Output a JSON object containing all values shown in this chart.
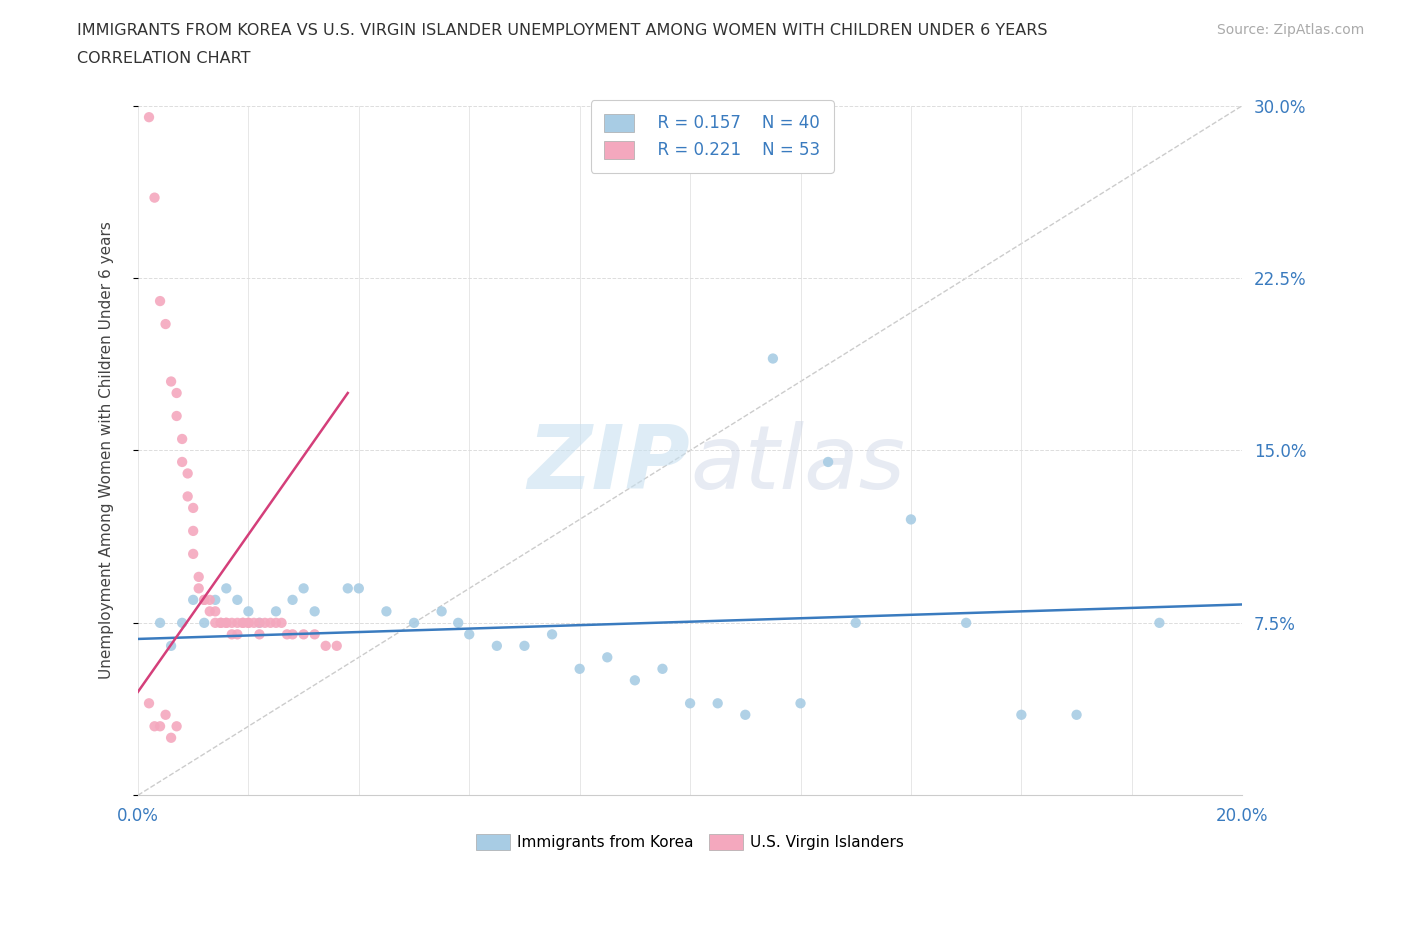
{
  "title_line1": "IMMIGRANTS FROM KOREA VS U.S. VIRGIN ISLANDER UNEMPLOYMENT AMONG WOMEN WITH CHILDREN UNDER 6 YEARS",
  "title_line2": "CORRELATION CHART",
  "source": "Source: ZipAtlas.com",
  "ylabel": "Unemployment Among Women with Children Under 6 years",
  "xlim": [
    0.0,
    0.2
  ],
  "ylim": [
    0.0,
    0.3
  ],
  "yticks": [
    0.0,
    0.075,
    0.15,
    0.225,
    0.3
  ],
  "ytick_labels": [
    "",
    "7.5%",
    "15.0%",
    "22.5%",
    "30.0%"
  ],
  "watermark_zip": "ZIP",
  "watermark_atlas": "atlas",
  "legend_r1": "R = 0.157",
  "legend_n1": "N = 40",
  "legend_r2": "R = 0.221",
  "legend_n2": "N = 53",
  "color_blue": "#a8cce4",
  "color_pink": "#f4a8be",
  "trendline_blue_color": "#3a7bbf",
  "trendline_pink_color": "#d43f7a",
  "diag_color": "#cccccc",
  "blue_scatter": [
    [
      0.004,
      0.075
    ],
    [
      0.006,
      0.065
    ],
    [
      0.008,
      0.075
    ],
    [
      0.01,
      0.085
    ],
    [
      0.012,
      0.075
    ],
    [
      0.014,
      0.085
    ],
    [
      0.016,
      0.09
    ],
    [
      0.018,
      0.085
    ],
    [
      0.02,
      0.08
    ],
    [
      0.022,
      0.075
    ],
    [
      0.025,
      0.08
    ],
    [
      0.028,
      0.085
    ],
    [
      0.03,
      0.09
    ],
    [
      0.032,
      0.08
    ],
    [
      0.038,
      0.09
    ],
    [
      0.04,
      0.09
    ],
    [
      0.045,
      0.08
    ],
    [
      0.05,
      0.075
    ],
    [
      0.055,
      0.08
    ],
    [
      0.058,
      0.075
    ],
    [
      0.06,
      0.07
    ],
    [
      0.065,
      0.065
    ],
    [
      0.07,
      0.065
    ],
    [
      0.075,
      0.07
    ],
    [
      0.08,
      0.055
    ],
    [
      0.085,
      0.06
    ],
    [
      0.09,
      0.05
    ],
    [
      0.095,
      0.055
    ],
    [
      0.1,
      0.04
    ],
    [
      0.105,
      0.04
    ],
    [
      0.11,
      0.035
    ],
    [
      0.12,
      0.04
    ],
    [
      0.115,
      0.19
    ],
    [
      0.125,
      0.145
    ],
    [
      0.13,
      0.075
    ],
    [
      0.14,
      0.12
    ],
    [
      0.15,
      0.075
    ],
    [
      0.16,
      0.035
    ],
    [
      0.17,
      0.035
    ],
    [
      0.185,
      0.075
    ]
  ],
  "pink_scatter": [
    [
      0.002,
      0.295
    ],
    [
      0.003,
      0.26
    ],
    [
      0.004,
      0.215
    ],
    [
      0.005,
      0.205
    ],
    [
      0.006,
      0.18
    ],
    [
      0.007,
      0.175
    ],
    [
      0.007,
      0.165
    ],
    [
      0.008,
      0.155
    ],
    [
      0.008,
      0.145
    ],
    [
      0.009,
      0.14
    ],
    [
      0.009,
      0.13
    ],
    [
      0.01,
      0.125
    ],
    [
      0.01,
      0.115
    ],
    [
      0.01,
      0.105
    ],
    [
      0.011,
      0.095
    ],
    [
      0.011,
      0.09
    ],
    [
      0.012,
      0.085
    ],
    [
      0.012,
      0.085
    ],
    [
      0.013,
      0.085
    ],
    [
      0.013,
      0.08
    ],
    [
      0.014,
      0.08
    ],
    [
      0.014,
      0.075
    ],
    [
      0.015,
      0.075
    ],
    [
      0.015,
      0.075
    ],
    [
      0.016,
      0.075
    ],
    [
      0.016,
      0.075
    ],
    [
      0.017,
      0.075
    ],
    [
      0.017,
      0.07
    ],
    [
      0.018,
      0.07
    ],
    [
      0.018,
      0.075
    ],
    [
      0.019,
      0.075
    ],
    [
      0.019,
      0.075
    ],
    [
      0.02,
      0.075
    ],
    [
      0.02,
      0.075
    ],
    [
      0.021,
      0.075
    ],
    [
      0.022,
      0.075
    ],
    [
      0.022,
      0.07
    ],
    [
      0.023,
      0.075
    ],
    [
      0.024,
      0.075
    ],
    [
      0.025,
      0.075
    ],
    [
      0.026,
      0.075
    ],
    [
      0.027,
      0.07
    ],
    [
      0.028,
      0.07
    ],
    [
      0.03,
      0.07
    ],
    [
      0.032,
      0.07
    ],
    [
      0.034,
      0.065
    ],
    [
      0.036,
      0.065
    ],
    [
      0.002,
      0.04
    ],
    [
      0.003,
      0.03
    ],
    [
      0.004,
      0.03
    ],
    [
      0.005,
      0.035
    ],
    [
      0.006,
      0.025
    ],
    [
      0.007,
      0.03
    ]
  ]
}
